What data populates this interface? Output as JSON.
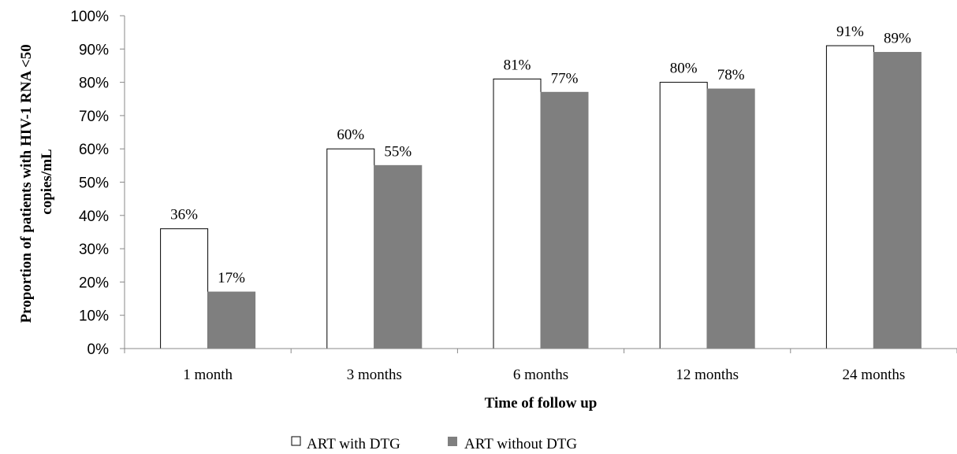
{
  "chart_data": {
    "type": "bar",
    "categories": [
      "1 month",
      "3 months",
      "6 months",
      "12 months",
      "24 months"
    ],
    "series": [
      {
        "name": "ART with DTG",
        "values": [
          36,
          60,
          81,
          80,
          91
        ],
        "labels": [
          "36%",
          "60%",
          "81%",
          "80%",
          "91%"
        ],
        "color": "#ffffff",
        "stroke": "#000000"
      },
      {
        "name": "ART without DTG",
        "values": [
          17,
          55,
          77,
          78,
          89
        ],
        "labels": [
          "17%",
          "55%",
          "77%",
          "78%",
          "89%"
        ],
        "color": "#7f7f7f",
        "stroke": "#7f7f7f"
      }
    ],
    "xlabel": "Time of follow up",
    "ylabel_lines": [
      "Proportion of patients with HIV-1 RNA <50",
      "copies/mL"
    ],
    "ylim": [
      0,
      100
    ],
    "yticks": [
      "0%",
      "10%",
      "20%",
      "30%",
      "40%",
      "50%",
      "60%",
      "70%",
      "80%",
      "90%",
      "100%"
    ],
    "grid": false,
    "legend_position": "bottom-center"
  }
}
